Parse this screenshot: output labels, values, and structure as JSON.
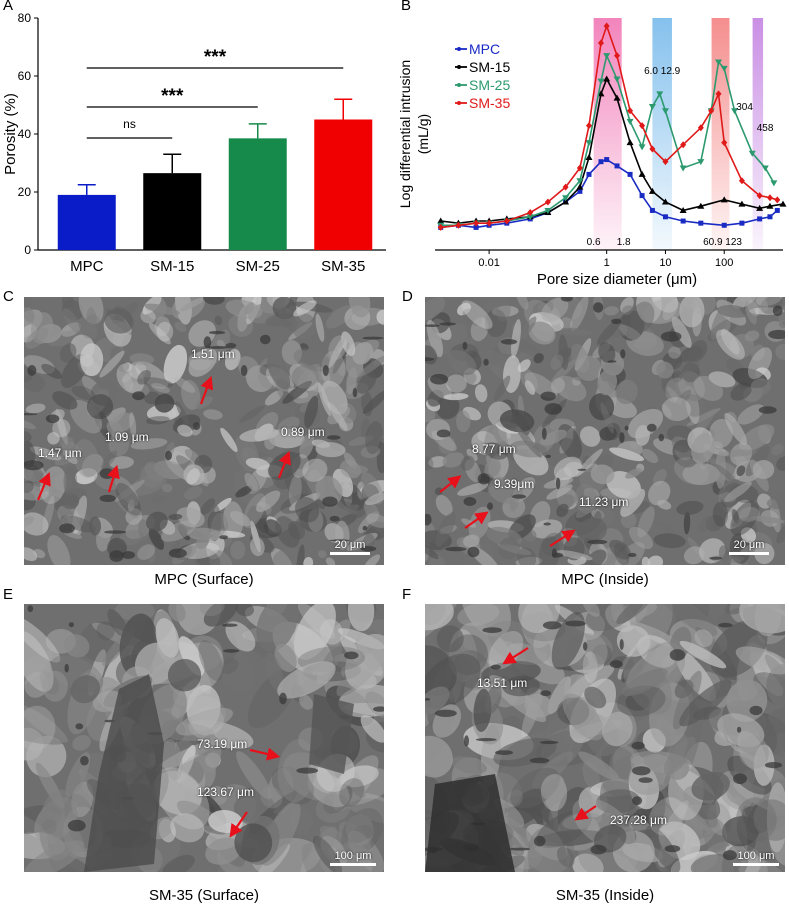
{
  "panel_letters": {
    "a": "A",
    "b": "B",
    "c": "C",
    "d": "D",
    "e": "E",
    "f": "F"
  },
  "chart_data": [
    {
      "type": "bar",
      "panel": "A",
      "ylabel": "Porosity (%)",
      "xlabel": "",
      "ylim": [
        0,
        80
      ],
      "yticks": [
        0,
        20,
        40,
        60,
        80
      ],
      "categories": [
        "MPC",
        "SM-15",
        "SM-25",
        "SM-35"
      ],
      "values": [
        19,
        26.5,
        38.5,
        45
      ],
      "errors": [
        3.5,
        6.5,
        5,
        7
      ],
      "colors": [
        "#0a1cc8",
        "#000000",
        "#168a4a",
        "#f00000"
      ],
      "significance": [
        {
          "from": 0,
          "to": 1,
          "label": "ns"
        },
        {
          "from": 0,
          "to": 2,
          "label": "***"
        },
        {
          "from": 0,
          "to": 3,
          "label": "***"
        }
      ]
    },
    {
      "type": "line",
      "panel": "B",
      "xlabel": "Pore size diameter (μm)",
      "ylabel": "Log differential intrusion (mL/g)",
      "xscale": "log",
      "xlim": [
        0.0012,
        1000
      ],
      "xticks": [
        0.01,
        1,
        10,
        100
      ],
      "xtick_labels": [
        "0.01",
        "1",
        "10",
        "100"
      ],
      "ylim": [
        0,
        1
      ],
      "legend_position": "top-left",
      "highlight_bands": [
        {
          "range": [
            0.6,
            1.8
          ],
          "color": "#f06fb0",
          "labels": [
            "0.6",
            "1.8"
          ]
        },
        {
          "range": [
            6.0,
            12.9
          ],
          "color": "#6fb6ea",
          "labels": [
            "6.0 12.9"
          ]
        },
        {
          "range": [
            60.9,
            123
          ],
          "color": "#f37a7a",
          "labels": [
            "60.9  123"
          ]
        },
        {
          "range": [
            304,
            458
          ],
          "color": "#c07be0",
          "labels": [
            "304",
            "458"
          ]
        }
      ],
      "series": [
        {
          "name": "MPC",
          "color": "#1a2bc4",
          "marker": "square",
          "points": [
            [
              0.0015,
              0.05
            ],
            [
              0.003,
              0.06
            ],
            [
              0.006,
              0.05
            ],
            [
              0.01,
              0.06
            ],
            [
              0.02,
              0.07
            ],
            [
              0.05,
              0.09
            ],
            [
              0.1,
              0.12
            ],
            [
              0.2,
              0.17
            ],
            [
              0.35,
              0.22
            ],
            [
              0.5,
              0.3
            ],
            [
              0.8,
              0.36
            ],
            [
              1,
              0.37
            ],
            [
              1.5,
              0.34
            ],
            [
              2.5,
              0.3
            ],
            [
              4,
              0.2
            ],
            [
              6,
              0.13
            ],
            [
              10,
              0.1
            ],
            [
              20,
              0.08
            ],
            [
              40,
              0.07
            ],
            [
              100,
              0.06
            ],
            [
              200,
              0.07
            ],
            [
              400,
              0.09
            ],
            [
              600,
              0.1
            ],
            [
              800,
              0.13
            ]
          ]
        },
        {
          "name": "SM-15",
          "color": "#000000",
          "marker": "triangle",
          "points": [
            [
              0.0015,
              0.08
            ],
            [
              0.003,
              0.07
            ],
            [
              0.006,
              0.08
            ],
            [
              0.01,
              0.08
            ],
            [
              0.02,
              0.09
            ],
            [
              0.05,
              0.1
            ],
            [
              0.1,
              0.12
            ],
            [
              0.2,
              0.17
            ],
            [
              0.35,
              0.24
            ],
            [
              0.5,
              0.38
            ],
            [
              0.8,
              0.68
            ],
            [
              1,
              0.75
            ],
            [
              1.5,
              0.66
            ],
            [
              2.5,
              0.45
            ],
            [
              4,
              0.3
            ],
            [
              6,
              0.22
            ],
            [
              10,
              0.17
            ],
            [
              20,
              0.13
            ],
            [
              40,
              0.15
            ],
            [
              100,
              0.18
            ],
            [
              200,
              0.16
            ],
            [
              400,
              0.14
            ],
            [
              600,
              0.15
            ],
            [
              1000,
              0.16
            ]
          ]
        },
        {
          "name": "SM-25",
          "color": "#2c9a6e",
          "marker": "triangle-down",
          "points": [
            [
              0.0015,
              0.06
            ],
            [
              0.003,
              0.06
            ],
            [
              0.006,
              0.07
            ],
            [
              0.01,
              0.07
            ],
            [
              0.02,
              0.08
            ],
            [
              0.05,
              0.1
            ],
            [
              0.1,
              0.13
            ],
            [
              0.2,
              0.19
            ],
            [
              0.35,
              0.27
            ],
            [
              0.5,
              0.45
            ],
            [
              0.8,
              0.74
            ],
            [
              1,
              0.86
            ],
            [
              1.5,
              0.75
            ],
            [
              2.5,
              0.55
            ],
            [
              4,
              0.43
            ],
            [
              6,
              0.62
            ],
            [
              8,
              0.68
            ],
            [
              10,
              0.6
            ],
            [
              20,
              0.33
            ],
            [
              40,
              0.36
            ],
            [
              60,
              0.6
            ],
            [
              80,
              0.83
            ],
            [
              100,
              0.8
            ],
            [
              150,
              0.6
            ],
            [
              300,
              0.4
            ],
            [
              500,
              0.33
            ],
            [
              700,
              0.26
            ]
          ]
        },
        {
          "name": "SM-35",
          "color": "#e01919",
          "marker": "diamond",
          "points": [
            [
              0.0015,
              0.05
            ],
            [
              0.003,
              0.06
            ],
            [
              0.006,
              0.07
            ],
            [
              0.01,
              0.07
            ],
            [
              0.02,
              0.08
            ],
            [
              0.05,
              0.12
            ],
            [
              0.1,
              0.17
            ],
            [
              0.2,
              0.24
            ],
            [
              0.35,
              0.33
            ],
            [
              0.5,
              0.53
            ],
            [
              0.8,
              0.92
            ],
            [
              1,
              1.0
            ],
            [
              1.5,
              0.86
            ],
            [
              2.5,
              0.6
            ],
            [
              4,
              0.53
            ],
            [
              6,
              0.42
            ],
            [
              10,
              0.36
            ],
            [
              20,
              0.44
            ],
            [
              40,
              0.52
            ],
            [
              60,
              0.6
            ],
            [
              80,
              0.68
            ],
            [
              100,
              0.45
            ],
            [
              200,
              0.27
            ],
            [
              400,
              0.2
            ],
            [
              600,
              0.19
            ],
            [
              800,
              0.18
            ]
          ]
        }
      ]
    }
  ],
  "sem_panels": {
    "c": {
      "caption": "MPC (Surface)",
      "scalebar": "20 μm",
      "measurements": [
        "1.51 μm",
        "1.09 μm",
        "1.47 μm",
        "0.89 μm"
      ]
    },
    "d": {
      "caption": "MPC (Inside)",
      "scalebar": "20 μm",
      "measurements": [
        "8.77 μm",
        "9.39μm",
        "11.23 μm"
      ]
    },
    "e": {
      "caption": "SM-35 (Surface)",
      "scalebar": "100 μm",
      "measurements": [
        "73.19 μm",
        "123.67 μm"
      ]
    },
    "f": {
      "caption": "SM-35 (Inside)",
      "scalebar": "100 μm",
      "measurements": [
        "13.51 μm",
        "237.28 μm"
      ]
    }
  },
  "colors": {
    "arrow": "#e8101a",
    "sem_base": "#6f6f6f",
    "sem_dark": "#3a3a3a",
    "sem_light": "#bdbdbd"
  }
}
